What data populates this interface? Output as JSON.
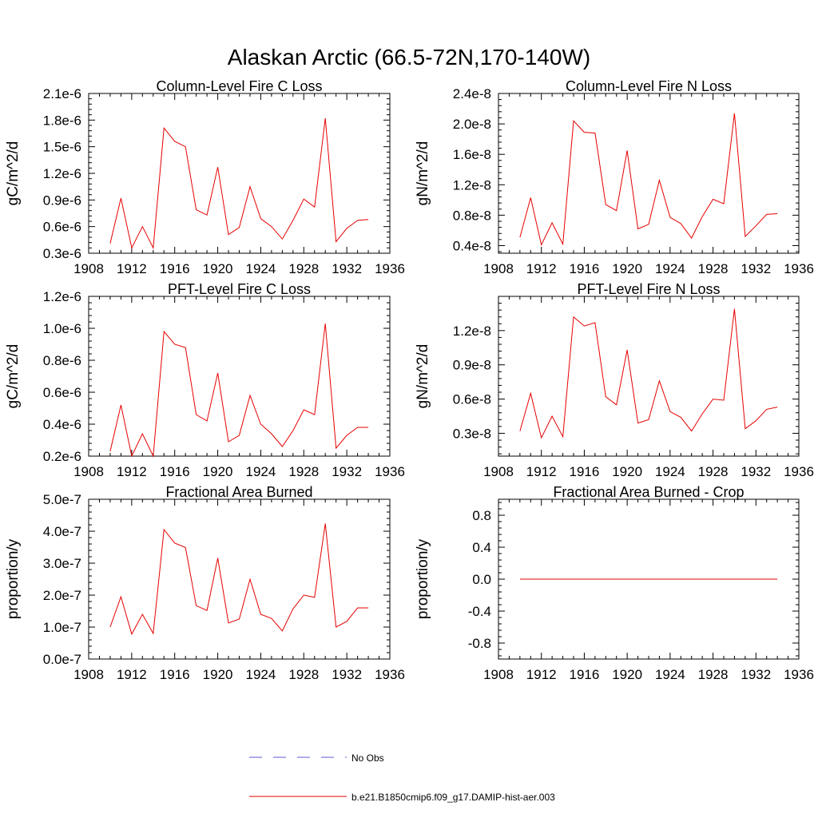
{
  "figure_title": "Alaskan Arctic (66.5-72N,170-140W)",
  "colors": {
    "model": "#e60000",
    "obs": "#5a5ad6",
    "axis": "#000000"
  },
  "legend": {
    "items": [
      {
        "label": "No Obs",
        "style": "dashed",
        "color": "#5a5ad6"
      },
      {
        "label": "b.e21.B1850cmip6.f09_g17.DAMIP-hist-aer.003",
        "style": "solid",
        "color": "#e60000"
      }
    ]
  },
  "chart_data": [
    {
      "type": "line",
      "title": "Column-Level Fire C Loss",
      "ylabel": "gC/m^2/d",
      "xlim": [
        1908,
        1936
      ],
      "ylim": [
        3e-07,
        2.1e-06
      ],
      "xticks": [
        1908,
        1912,
        1916,
        1920,
        1924,
        1928,
        1932,
        1936
      ],
      "xtick_labels": [
        "1908",
        "1912",
        "1916",
        "1920",
        "1924",
        "1928",
        "1932",
        "1936"
      ],
      "yticks": [
        3e-07,
        6e-07,
        9e-07,
        1.2e-06,
        1.5e-06,
        1.8e-06,
        2.1e-06
      ],
      "ytick_labels": [
        "0.3e-6",
        "0.6e-6",
        "0.9e-6",
        "1.2e-6",
        "1.5e-6",
        "1.8e-6",
        "2.1e-6"
      ],
      "series": [
        {
          "x": [
            1910,
            1911,
            1912,
            1913,
            1914,
            1915,
            1916,
            1917,
            1918,
            1919,
            1920,
            1921,
            1922,
            1923,
            1924,
            1925,
            1926,
            1927,
            1928,
            1929,
            1930,
            1931,
            1932,
            1933,
            1934
          ],
          "values": [
            4.1e-07,
            9.2e-07,
            3.6e-07,
            6e-07,
            3.6e-07,
            1.71e-06,
            1.56e-06,
            1.5e-06,
            7.9e-07,
            7.3e-07,
            1.27e-06,
            5.1e-07,
            5.9e-07,
            1.05e-06,
            6.9e-07,
            6e-07,
            4.6e-07,
            6.7e-07,
            9.1e-07,
            8.2e-07,
            1.82e-06,
            4.3e-07,
            5.8e-07,
            6.7e-07,
            6.8e-07
          ]
        }
      ]
    },
    {
      "type": "line",
      "title": "Column-Level Fire N Loss",
      "ylabel": "gN/m^2/d",
      "xlim": [
        1908,
        1936
      ],
      "ylim": [
        3e-09,
        2.4e-08
      ],
      "xticks": [
        1908,
        1912,
        1916,
        1920,
        1924,
        1928,
        1932,
        1936
      ],
      "xtick_labels": [
        "1908",
        "1912",
        "1916",
        "1920",
        "1924",
        "1928",
        "1932",
        "1936"
      ],
      "yticks": [
        4e-09,
        8e-09,
        1.2e-08,
        1.6e-08,
        2e-08,
        2.4e-08
      ],
      "ytick_labels": [
        "0.4e-8",
        "0.8e-8",
        "1.2e-8",
        "1.6e-8",
        "2.0e-8",
        "2.4e-8"
      ],
      "series": [
        {
          "x": [
            1910,
            1911,
            1912,
            1913,
            1914,
            1915,
            1916,
            1917,
            1918,
            1919,
            1920,
            1921,
            1922,
            1923,
            1924,
            1925,
            1926,
            1927,
            1928,
            1929,
            1930,
            1931,
            1932,
            1933,
            1934
          ],
          "values": [
            5.1e-09,
            1.03e-08,
            4.1e-09,
            7e-09,
            4.2e-09,
            2.04e-08,
            1.89e-08,
            1.88e-08,
            9.4e-09,
            8.6e-09,
            1.65e-08,
            6.2e-09,
            6.8e-09,
            1.26e-08,
            7.7e-09,
            6.9e-09,
            5e-09,
            7.8e-09,
            1.01e-08,
            9.5e-09,
            2.14e-08,
            5.2e-09,
            6.6e-09,
            8.1e-09,
            8.2e-09
          ]
        }
      ]
    },
    {
      "type": "line",
      "title": "PFT-Level Fire C Loss",
      "ylabel": "gC/m^2/d",
      "xlim": [
        1908,
        1936
      ],
      "ylim": [
        2e-07,
        1.2e-06
      ],
      "xticks": [
        1908,
        1912,
        1916,
        1920,
        1924,
        1928,
        1932,
        1936
      ],
      "xtick_labels": [
        "1908",
        "1912",
        "1916",
        "1920",
        "1924",
        "1928",
        "1932",
        "1936"
      ],
      "yticks": [
        2e-07,
        4e-07,
        6e-07,
        8e-07,
        1e-06,
        1.2e-06
      ],
      "ytick_labels": [
        "0.2e-6",
        "0.4e-6",
        "0.6e-6",
        "0.8e-6",
        "1.0e-6",
        "1.2e-6"
      ],
      "series": [
        {
          "x": [
            1910,
            1911,
            1912,
            1913,
            1914,
            1915,
            1916,
            1917,
            1918,
            1919,
            1920,
            1921,
            1922,
            1923,
            1924,
            1925,
            1926,
            1927,
            1928,
            1929,
            1930,
            1931,
            1932,
            1933,
            1934
          ],
          "values": [
            2.3e-07,
            5.2e-07,
            2e-07,
            3.4e-07,
            2e-07,
            9.8e-07,
            9e-07,
            8.8e-07,
            4.6e-07,
            4.2e-07,
            7.2e-07,
            2.9e-07,
            3.3e-07,
            5.8e-07,
            4e-07,
            3.4e-07,
            2.6e-07,
            3.6e-07,
            4.9e-07,
            4.6e-07,
            1.03e-06,
            2.5e-07,
            3.3e-07,
            3.8e-07,
            3.8e-07
          ]
        }
      ]
    },
    {
      "type": "line",
      "title": "PFT-Level Fire N Loss",
      "ylabel": "gN/m^2/d",
      "xlim": [
        1908,
        1936
      ],
      "ylim": [
        1e-09,
        1.5e-08
      ],
      "xticks": [
        1908,
        1912,
        1916,
        1920,
        1924,
        1928,
        1932,
        1936
      ],
      "xtick_labels": [
        "1908",
        "1912",
        "1916",
        "1920",
        "1924",
        "1928",
        "1932",
        "1936"
      ],
      "yticks": [
        3e-09,
        6e-09,
        9e-09,
        1.2e-08
      ],
      "ytick_labels": [
        "0.3e-8",
        "0.6e-8",
        "0.9e-8",
        "1.2e-8"
      ],
      "series": [
        {
          "x": [
            1910,
            1911,
            1912,
            1913,
            1914,
            1915,
            1916,
            1917,
            1918,
            1919,
            1920,
            1921,
            1922,
            1923,
            1924,
            1925,
            1926,
            1927,
            1928,
            1929,
            1930,
            1931,
            1932,
            1933,
            1934
          ],
          "values": [
            3.2e-09,
            6.5e-09,
            2.6e-09,
            4.5e-09,
            2.7e-09,
            1.32e-08,
            1.24e-08,
            1.27e-08,
            6.2e-09,
            5.5e-09,
            1.03e-08,
            3.9e-09,
            4.2e-09,
            7.6e-09,
            4.9e-09,
            4.4e-09,
            3.2e-09,
            4.7e-09,
            6e-09,
            5.9e-09,
            1.39e-08,
            3.4e-09,
            4.1e-09,
            5.1e-09,
            5.3e-09
          ]
        }
      ]
    },
    {
      "type": "line",
      "title": "Fractional Area Burned",
      "ylabel": "proportion/y",
      "xlim": [
        1908,
        1936
      ],
      "ylim": [
        0.0,
        5e-07
      ],
      "xticks": [
        1908,
        1912,
        1916,
        1920,
        1924,
        1928,
        1932,
        1936
      ],
      "xtick_labels": [
        "1908",
        "1912",
        "1916",
        "1920",
        "1924",
        "1928",
        "1932",
        "1936"
      ],
      "yticks": [
        0.0,
        1e-07,
        2e-07,
        3e-07,
        4e-07,
        5e-07
      ],
      "ytick_labels": [
        "0.0e-7",
        "1.0e-7",
        "2.0e-7",
        "3.0e-7",
        "4.0e-7",
        "5.0e-7"
      ],
      "series": [
        {
          "x": [
            1910,
            1911,
            1912,
            1913,
            1914,
            1915,
            1916,
            1917,
            1918,
            1919,
            1920,
            1921,
            1922,
            1923,
            1924,
            1925,
            1926,
            1927,
            1928,
            1929,
            1930,
            1931,
            1932,
            1933,
            1934
          ],
          "values": [
            1e-07,
            1.95e-07,
            7.8e-08,
            1.4e-07,
            8e-08,
            4.05e-07,
            3.63e-07,
            3.49e-07,
            1.67e-07,
            1.52e-07,
            3.16e-07,
            1.13e-07,
            1.25e-07,
            2.5e-07,
            1.4e-07,
            1.27e-07,
            8.8e-08,
            1.57e-07,
            2e-07,
            1.93e-07,
            4.24e-07,
            1e-07,
            1.18e-07,
            1.6e-07,
            1.6e-07
          ]
        }
      ]
    },
    {
      "type": "line",
      "title": "Fractional Area Burned - Crop",
      "ylabel": "proportion/y",
      "xlim": [
        1908,
        1936
      ],
      "ylim": [
        -1.0,
        1.0
      ],
      "xticks": [
        1908,
        1912,
        1916,
        1920,
        1924,
        1928,
        1932,
        1936
      ],
      "xtick_labels": [
        "1908",
        "1912",
        "1916",
        "1920",
        "1924",
        "1928",
        "1932",
        "1936"
      ],
      "yticks": [
        -0.8,
        -0.4,
        0.0,
        0.4,
        0.8
      ],
      "ytick_labels": [
        "-0.8",
        "-0.4",
        "0.0",
        "0.4",
        "0.8"
      ],
      "series": [
        {
          "x": [
            1910,
            1911,
            1912,
            1913,
            1914,
            1915,
            1916,
            1917,
            1918,
            1919,
            1920,
            1921,
            1922,
            1923,
            1924,
            1925,
            1926,
            1927,
            1928,
            1929,
            1930,
            1931,
            1932,
            1933,
            1934
          ],
          "values": [
            0,
            0,
            0,
            0,
            0,
            0,
            0,
            0,
            0,
            0,
            0,
            0,
            0,
            0,
            0,
            0,
            0,
            0,
            0,
            0,
            0,
            0,
            0,
            0,
            0
          ]
        }
      ]
    }
  ]
}
